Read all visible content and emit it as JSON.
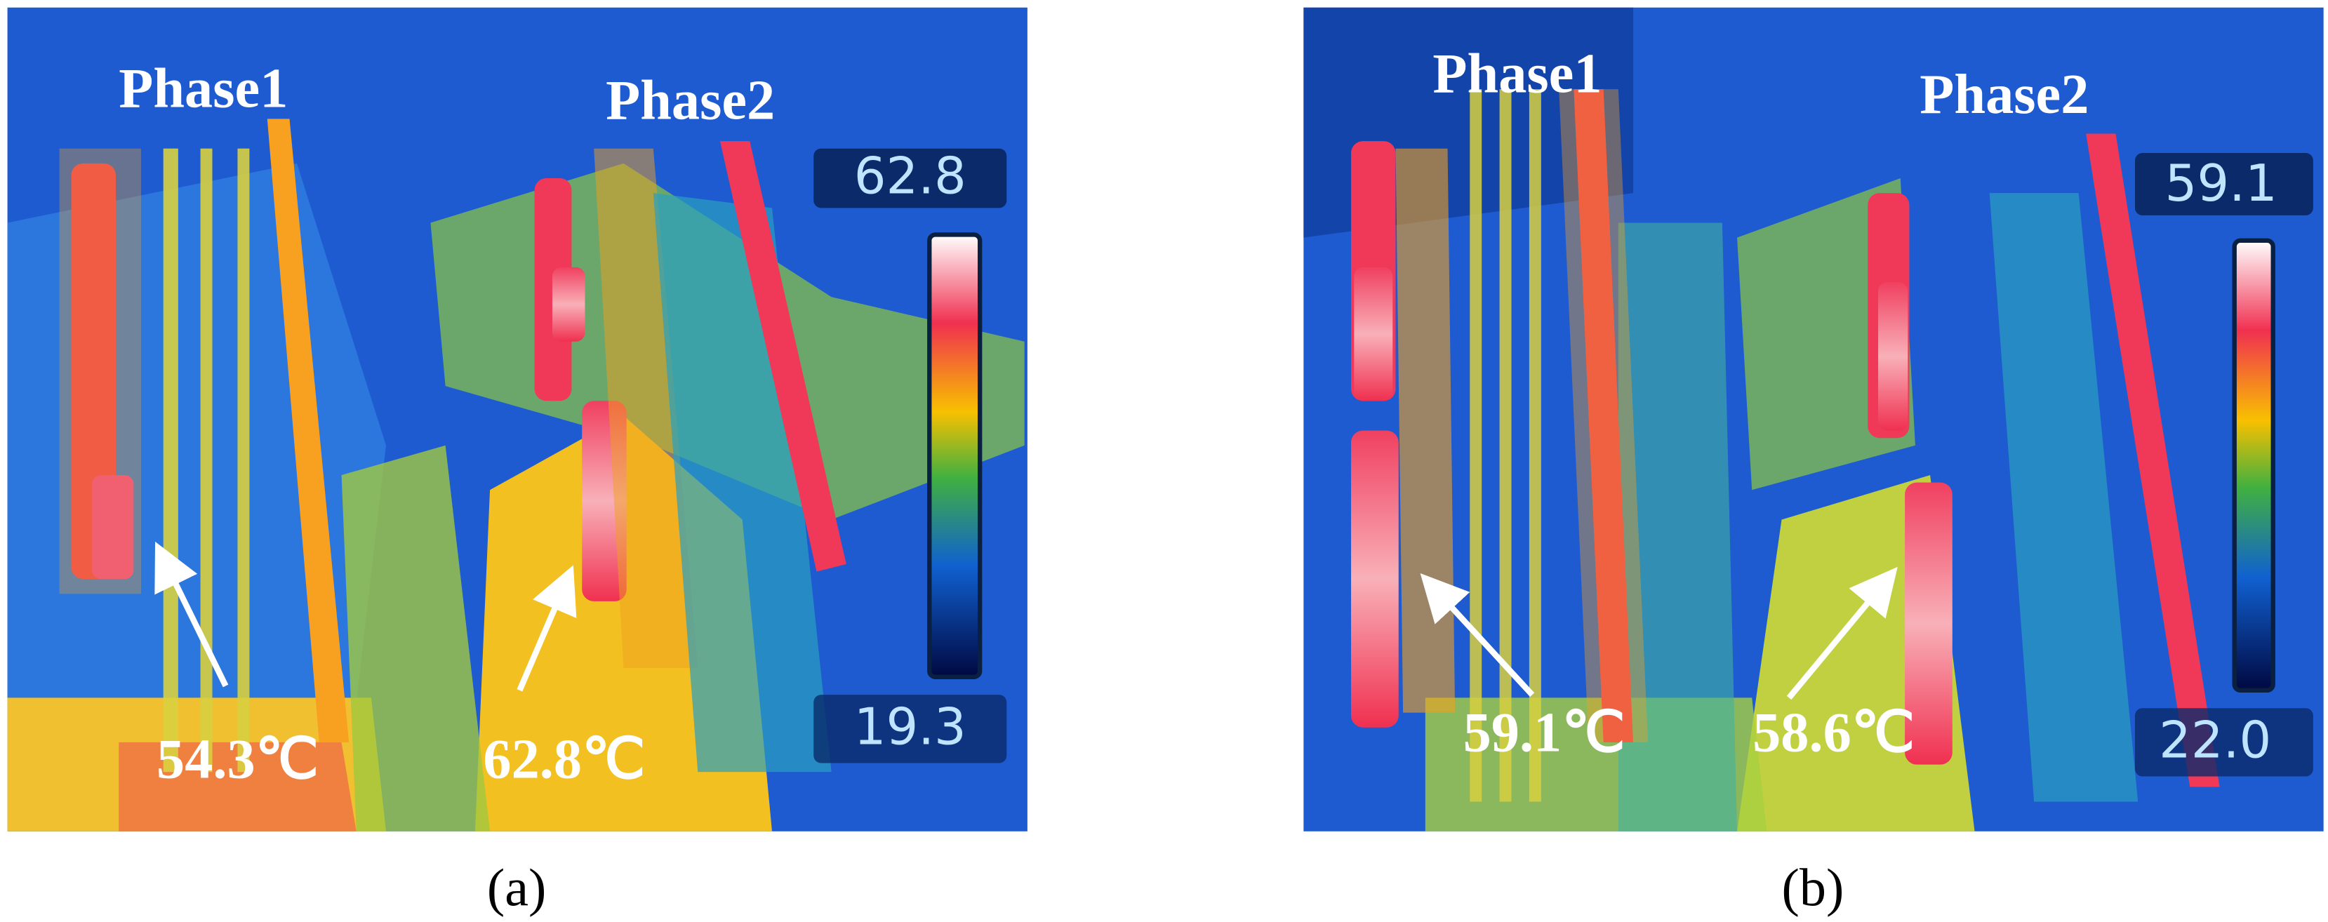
{
  "panels": [
    {
      "phase_labels": [
        "Phase1",
        "Phase2"
      ],
      "scale_max": "62.8",
      "scale_min": "19.3",
      "annotations": [
        "54.3℃",
        "62.8℃"
      ],
      "caption": "(a)"
    },
    {
      "phase_labels": [
        "Phase1",
        "Phase2"
      ],
      "scale_max": "59.1",
      "scale_min": "22.0",
      "annotations": [
        "59.1℃",
        "58.6℃"
      ],
      "caption": "(b)"
    }
  ]
}
